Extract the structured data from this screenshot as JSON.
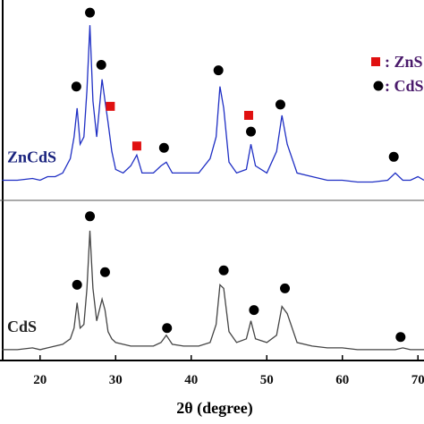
{
  "chart_data": {
    "type": "line",
    "xlabel": "2θ (degree)",
    "xlim": [
      14.7,
      70.8
    ],
    "ylim": [
      0,
      100
    ],
    "xticks": [
      20,
      30,
      40,
      50,
      60,
      70
    ],
    "x": [
      15,
      17,
      19,
      20,
      21,
      22,
      23,
      24,
      24.5,
      24.9,
      25.3,
      25.8,
      26.2,
      26.6,
      27.0,
      27.5,
      28.2,
      28.6,
      29.0,
      29.5,
      30,
      31,
      32,
      32.8,
      33.5,
      35,
      36,
      36.7,
      37.5,
      39,
      41,
      42.5,
      43.3,
      43.8,
      44.3,
      45,
      46,
      47.3,
      47.9,
      48.5,
      50,
      51.3,
      52,
      52.7,
      54,
      56,
      58,
      60,
      62,
      64,
      66,
      67,
      68,
      69,
      70,
      70.8
    ],
    "series": [
      {
        "name": "ZnCdS",
        "color": "#1f2fc4",
        "label_color": "#1a237e",
        "values": [
          50,
          50,
          50.5,
          50,
          51,
          51,
          52,
          56,
          62,
          70,
          60,
          62,
          75,
          93,
          72,
          62,
          78,
          72,
          66,
          58,
          53,
          52,
          54,
          57,
          52,
          52,
          54,
          55,
          52,
          52,
          52,
          56,
          62,
          76,
          70,
          55,
          52,
          53,
          60,
          54,
          52,
          58,
          68,
          60,
          52,
          51,
          50,
          50,
          49.5,
          49.5,
          50,
          52,
          50,
          50,
          51,
          50
        ]
      },
      {
        "name": "CdS",
        "color": "#444444",
        "label_color": "#222222",
        "values": [
          3,
          3,
          3.5,
          3,
          3.5,
          4,
          4.5,
          6,
          9,
          16,
          9,
          10,
          20,
          36,
          20,
          11,
          17,
          14,
          8,
          6,
          5,
          4.5,
          4,
          4,
          4,
          4,
          5,
          7,
          4.5,
          4,
          4,
          5,
          10,
          21,
          20,
          8,
          5,
          6,
          11,
          6,
          5,
          7,
          15,
          13,
          5,
          4,
          3.5,
          3.5,
          3,
          3,
          3,
          3,
          3.5,
          3,
          3,
          3
        ]
      }
    ],
    "markers": {
      "circle": [
        [
          24.8,
          76
        ],
        [
          26.6,
          96.5
        ],
        [
          28.1,
          82
        ],
        [
          36.4,
          59
        ],
        [
          43.6,
          80.5
        ],
        [
          47.9,
          63.5
        ],
        [
          51.8,
          71
        ],
        [
          66.8,
          56.5
        ],
        [
          24.9,
          21
        ],
        [
          26.6,
          40
        ],
        [
          28.6,
          24.5
        ],
        [
          36.8,
          9
        ],
        [
          44.3,
          25
        ],
        [
          48.3,
          14
        ],
        [
          52.4,
          20
        ],
        [
          67.7,
          6.5
        ]
      ],
      "square": [
        [
          29.3,
          70.5
        ],
        [
          32.8,
          59.5
        ],
        [
          47.6,
          68
        ]
      ]
    },
    "legend": [
      {
        "marker": "square",
        "label": ": ZnS",
        "color": "#e01010"
      },
      {
        "marker": "circle",
        "label": ": CdS",
        "color": "#000000"
      }
    ]
  }
}
